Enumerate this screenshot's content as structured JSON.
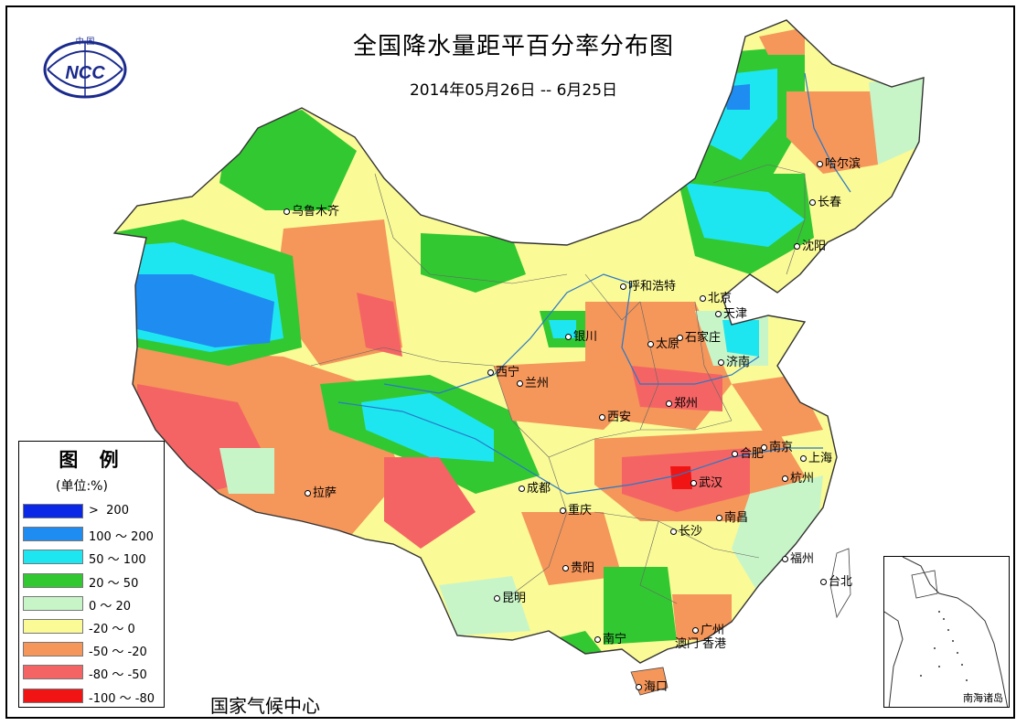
{
  "title": "全国降水量距平百分率分布图",
  "date_range": "2014年05月26日 -- 6月25日",
  "logo": {
    "text": "NCC",
    "top_text": "中 国"
  },
  "legend": {
    "title": "图 例",
    "unit": "(单位:%)",
    "items": [
      {
        "label": ">  200",
        "color": "#0a28e6"
      },
      {
        "label": "100 ～ 200",
        "color": "#1e8cf0"
      },
      {
        "label": "50 ～ 100",
        "color": "#1ee6f0"
      },
      {
        "label": "20 ～ 50",
        "color": "#32c832"
      },
      {
        "label": "0 ～ 20",
        "color": "#c8f5c8"
      },
      {
        "label": "-20 ～ 0",
        "color": "#fafa96"
      },
      {
        "label": "-50 ～ -20",
        "color": "#f5965a"
      },
      {
        "label": "-80 ～ -50",
        "color": "#f56464"
      },
      {
        "label": "-100 ～ -80",
        "color": "#f01414"
      }
    ]
  },
  "producer": "国家气候中心",
  "inset_label": "南海诸岛",
  "cities": [
    "乌鲁木齐",
    "哈尔滨",
    "长春",
    "沈阳",
    "呼和浩特",
    "北京",
    "天津",
    "银川",
    "太原",
    "石家庄",
    "济南",
    "西宁",
    "兰州",
    "郑州",
    "西安",
    "合肥",
    "南京",
    "上海",
    "拉萨",
    "成都",
    "武汉",
    "杭州",
    "重庆",
    "长沙",
    "南昌",
    "贵阳",
    "福州",
    "台北",
    "昆明",
    "南宁",
    "广州",
    "澳门",
    "香港",
    "海口"
  ]
}
